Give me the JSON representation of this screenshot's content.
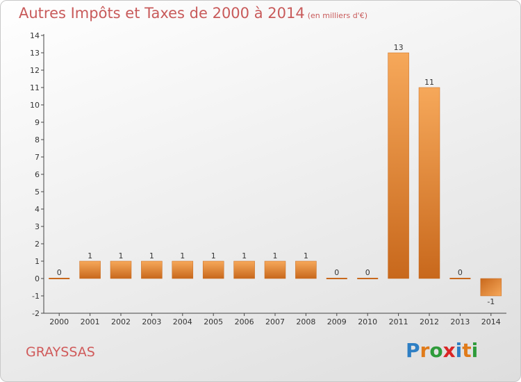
{
  "title": "Autres Impôts et Taxes de 2000 à 2014",
  "title_unit": "(en milliers d'€)",
  "commune": "GRAYSSAS",
  "logo": {
    "text": "Proxiti",
    "letters": [
      {
        "ch": "P",
        "color": "#2e7fc4"
      },
      {
        "ch": "r",
        "color": "#e07b1a"
      },
      {
        "ch": "o",
        "color": "#2e9b3a"
      },
      {
        "ch": "x",
        "color": "#d92525"
      },
      {
        "ch": "i",
        "color": "#2e7fc4"
      },
      {
        "ch": "t",
        "color": "#e07b1a"
      },
      {
        "ch": "i",
        "color": "#2e9b3a"
      }
    ]
  },
  "colors": {
    "bar_light": "#f6a85a",
    "bar_dark": "#c8681c",
    "title": "#c85a5a"
  },
  "chart_data": {
    "type": "bar",
    "categories": [
      "2000",
      "2001",
      "2002",
      "2003",
      "2004",
      "2005",
      "2006",
      "2007",
      "2008",
      "2009",
      "2010",
      "2011",
      "2012",
      "2013",
      "2014"
    ],
    "values": [
      0,
      1,
      1,
      1,
      1,
      1,
      1,
      1,
      1,
      0,
      0,
      13,
      11,
      0,
      -1
    ],
    "ylim": [
      -2,
      14
    ],
    "yticks": [
      "-2",
      "-1",
      "0",
      "1",
      "2",
      "3",
      "4",
      "5",
      "6",
      "7",
      "8",
      "9",
      "10",
      "11",
      "12",
      "13",
      "14"
    ],
    "grid": false
  }
}
